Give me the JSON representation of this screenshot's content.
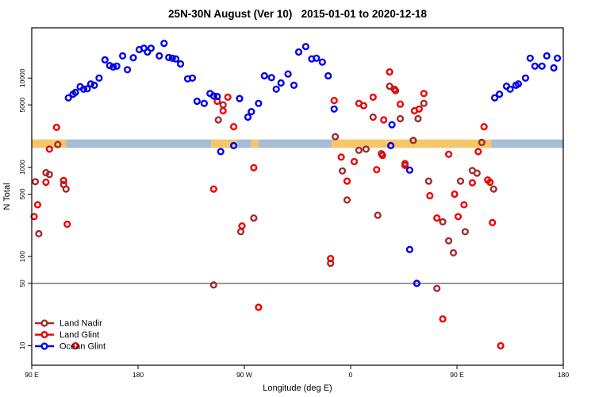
{
  "title": "25N-30N August (Ver 10)   2015-01-01 to 2020-12-18",
  "colors": {
    "land_nadir": "#A52A2A",
    "land_glint": "#EE0000",
    "ocean_glint": "#0000EE",
    "band_orange": "#F5C76B",
    "band_blue": "#A8BCD8",
    "reference_line": "#808080",
    "plot_border": "#000000"
  },
  "legend": {
    "items": [
      {
        "label": "Land Nadir",
        "color_key": "land_nadir"
      },
      {
        "label": "Land Glint",
        "color_key": "land_glint"
      },
      {
        "label": "Ocean Glint",
        "color_key": "ocean_glint"
      }
    ]
  },
  "chart_data": {
    "type": "scatter",
    "title": "25N-30N August (Ver 10)   2015-01-01 to 2020-12-18",
    "xlabel": "Longitude (deg E)",
    "ylabel": "N Total",
    "x_axis": {
      "range": [
        90,
        540
      ],
      "note": "longitude axis wraps eastward from 90E through 180, 90W, 0, back to 180",
      "ticks": [
        {
          "value": 90,
          "label": "90 E"
        },
        {
          "value": 180,
          "label": "180"
        },
        {
          "value": 270,
          "label": "90 W"
        },
        {
          "value": 360,
          "label": "0"
        },
        {
          "value": 450,
          "label": "90 E"
        },
        {
          "value": 540,
          "label": "180"
        }
      ]
    },
    "y_axis": {
      "scale": "log",
      "range": [
        8.5,
        36000
      ],
      "ticks": [
        {
          "value": 10000,
          "label": "10000"
        },
        {
          "value": 5000,
          "label": "5000"
        },
        {
          "value": 1000,
          "label": "1000"
        },
        {
          "value": 500,
          "label": "500"
        },
        {
          "value": 100,
          "label": "100"
        },
        {
          "value": 50,
          "label": "50"
        },
        {
          "value": 10,
          "label": "10"
        }
      ]
    },
    "reference_line_y": 50,
    "band": {
      "y_range": [
        1650,
        2050
      ],
      "segments": [
        {
          "from": 90,
          "to": 119,
          "color_key": "band_orange"
        },
        {
          "from": 119,
          "to": 242,
          "color_key": "band_blue"
        },
        {
          "from": 242,
          "to": 264,
          "color_key": "band_orange"
        },
        {
          "from": 264,
          "to": 276,
          "color_key": "band_blue"
        },
        {
          "from": 276,
          "to": 282,
          "color_key": "band_orange"
        },
        {
          "from": 282,
          "to": 344,
          "color_key": "band_blue"
        },
        {
          "from": 344,
          "to": 479,
          "color_key": "band_orange"
        },
        {
          "from": 479,
          "to": 540,
          "color_key": "band_blue"
        }
      ]
    },
    "series": [
      {
        "name": "Land Nadir",
        "color_key": "land_nadir",
        "points": [
          [
            112,
            1800
          ],
          [
            102,
            870
          ],
          [
            105,
            830
          ],
          [
            93,
            690
          ],
          [
            117,
            640
          ],
          [
            119,
            570
          ],
          [
            96,
            180
          ],
          [
            248,
            3400
          ],
          [
            252,
            5000
          ],
          [
            267,
            190
          ],
          [
            278,
            270
          ],
          [
            244,
            48
          ],
          [
            343,
            84
          ],
          [
            347,
            2200
          ],
          [
            353,
            910
          ],
          [
            357,
            430
          ],
          [
            367,
            1550
          ],
          [
            373,
            1600
          ],
          [
            379,
            3650
          ],
          [
            383,
            290
          ],
          [
            386,
            1420
          ],
          [
            393,
            8100
          ],
          [
            398,
            7200
          ],
          [
            402,
            3500
          ],
          [
            406,
            1100
          ],
          [
            413,
            2000
          ],
          [
            417,
            3500
          ],
          [
            422,
            5200
          ],
          [
            426,
            700
          ],
          [
            433,
            44
          ],
          [
            438,
            245
          ],
          [
            443,
            150
          ],
          [
            447,
            110
          ],
          [
            453,
            700
          ],
          [
            457,
            190
          ],
          [
            463,
            920
          ],
          [
            467,
            860
          ],
          [
            471,
            1900
          ],
          [
            481,
            570
          ]
        ]
      },
      {
        "name": "Land Glint",
        "color_key": "land_glint",
        "points": [
          [
            111,
            2800
          ],
          [
            105,
            1600
          ],
          [
            102,
            680
          ],
          [
            117,
            710
          ],
          [
            95,
            380
          ],
          [
            92,
            280
          ],
          [
            120,
            230
          ],
          [
            127,
            10
          ],
          [
            247,
            5500
          ],
          [
            252,
            4300
          ],
          [
            256,
            6100
          ],
          [
            261,
            2850
          ],
          [
            244,
            570
          ],
          [
            268,
            220
          ],
          [
            278,
            990
          ],
          [
            282,
            27
          ],
          [
            343,
            95
          ],
          [
            346,
            5600
          ],
          [
            352,
            1300
          ],
          [
            357,
            700
          ],
          [
            363,
            1160
          ],
          [
            367,
            5200
          ],
          [
            371,
            4900
          ],
          [
            379,
            6100
          ],
          [
            382,
            940
          ],
          [
            387,
            1360
          ],
          [
            388,
            3400
          ],
          [
            393,
            11700
          ],
          [
            397,
            7500
          ],
          [
            402,
            5100
          ],
          [
            406,
            1050
          ],
          [
            414,
            4300
          ],
          [
            418,
            4500
          ],
          [
            422,
            6700
          ],
          [
            427,
            480
          ],
          [
            433,
            270
          ],
          [
            438,
            20
          ],
          [
            443,
            1400
          ],
          [
            448,
            500
          ],
          [
            451,
            280
          ],
          [
            456,
            380
          ],
          [
            463,
            670
          ],
          [
            468,
            1500
          ],
          [
            473,
            2850
          ],
          [
            476,
            720
          ],
          [
            478,
            680
          ],
          [
            480,
            240
          ],
          [
            487,
            10
          ]
        ]
      },
      {
        "name": "Ocean Glint",
        "color_key": "ocean_glint",
        "points": [
          [
            121,
            6000
          ],
          [
            125,
            6600
          ],
          [
            127,
            6900
          ],
          [
            131,
            8000
          ],
          [
            134,
            7500
          ],
          [
            137,
            7600
          ],
          [
            140,
            8600
          ],
          [
            143,
            8300
          ],
          [
            147,
            10000
          ],
          [
            152,
            16000
          ],
          [
            156,
            13800
          ],
          [
            159,
            13300
          ],
          [
            162,
            13600
          ],
          [
            167,
            17700
          ],
          [
            171,
            12400
          ],
          [
            176,
            16900
          ],
          [
            181,
            20800
          ],
          [
            185,
            21600
          ],
          [
            188,
            19600
          ],
          [
            191,
            21600
          ],
          [
            198,
            17700
          ],
          [
            202,
            24500
          ],
          [
            206,
            17000
          ],
          [
            209,
            16700
          ],
          [
            212,
            16400
          ],
          [
            216,
            14400
          ],
          [
            222,
            9800
          ],
          [
            226,
            10000
          ],
          [
            230,
            5500
          ],
          [
            236,
            5200
          ],
          [
            241,
            6700
          ],
          [
            244,
            6300
          ],
          [
            247,
            6200
          ],
          [
            250,
            1500
          ],
          [
            261,
            1750
          ],
          [
            266,
            5900
          ],
          [
            273,
            3650
          ],
          [
            276,
            4200
          ],
          [
            282,
            5200
          ],
          [
            287,
            10600
          ],
          [
            293,
            10100
          ],
          [
            297,
            7500
          ],
          [
            301,
            8800
          ],
          [
            307,
            11100
          ],
          [
            312,
            8300
          ],
          [
            316,
            19600
          ],
          [
            322,
            22500
          ],
          [
            327,
            16400
          ],
          [
            331,
            16700
          ],
          [
            336,
            15100
          ],
          [
            341,
            10600
          ],
          [
            346,
            4500
          ],
          [
            394,
            1750
          ],
          [
            395,
            3000
          ],
          [
            410,
            930
          ],
          [
            410,
            120
          ],
          [
            416,
            50
          ],
          [
            482,
            6000
          ],
          [
            486,
            6600
          ],
          [
            492,
            8100
          ],
          [
            495,
            7500
          ],
          [
            500,
            8300
          ],
          [
            502,
            8600
          ],
          [
            508,
            10000
          ],
          [
            512,
            16700
          ],
          [
            516,
            13600
          ],
          [
            522,
            13600
          ],
          [
            526,
            17700
          ],
          [
            532,
            13000
          ],
          [
            535,
            16700
          ]
        ]
      }
    ]
  }
}
